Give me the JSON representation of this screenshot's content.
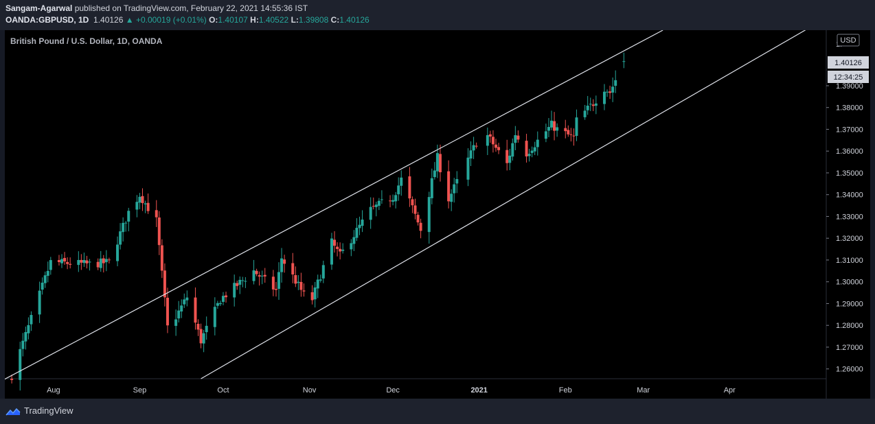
{
  "header": {
    "author": "Sangam-Agarwal",
    "published_text": "published on TradingView.com, February 22, 2021 14:55:36 IST",
    "symbol": "OANDA:GBPUSD, 1D",
    "last": "1.40126",
    "change": "+0.00019 (+0.01%)",
    "o_label": "O:",
    "o": "1.40107",
    "h_label": "H:",
    "h": "1.40522",
    "l_label": "L:",
    "l": "1.39808",
    "c_label": "C:",
    "c": "1.40126"
  },
  "chart": {
    "pair_title": "British Pound / U.S. Dollar, 1D, OANDA",
    "currency": "USD",
    "price_tag": "1.40126",
    "countdown": "12:34:25",
    "top_tick_partial": "1."
  },
  "footer": {
    "brand": "TradingView"
  },
  "colors": {
    "up": "#26a69a",
    "down": "#ef5350",
    "bg": "#000000",
    "panel": "#1e222d"
  },
  "chart_data": {
    "type": "candlestick",
    "title": "British Pound / U.S. Dollar, 1D, OANDA",
    "y_ticks": [
      "1.39000",
      "1.38000",
      "1.37000",
      "1.36000",
      "1.35000",
      "1.34000",
      "1.33000",
      "1.32000",
      "1.31000",
      "1.30000",
      "1.29000",
      "1.28000",
      "1.27000",
      "1.26000"
    ],
    "x_ticks": [
      "Aug",
      "Sep",
      "Oct",
      "Nov",
      "Dec",
      "2021",
      "Feb",
      "Mar",
      "Apr"
    ],
    "ylim": [
      1.2555,
      1.4155
    ],
    "keypoints": [
      {
        "date": "2020-07-17",
        "close": 1.257
      },
      {
        "date": "2020-07-31",
        "close": 1.309
      },
      {
        "date": "2020-08-14",
        "close": 1.308
      },
      {
        "date": "2020-08-21",
        "close": 1.309
      },
      {
        "date": "2020-08-28",
        "close": 1.332
      },
      {
        "date": "2020-09-01",
        "close": 1.34
      },
      {
        "date": "2020-09-07",
        "close": 1.328
      },
      {
        "date": "2020-09-11",
        "close": 1.279
      },
      {
        "date": "2020-09-14",
        "close": 1.284
      },
      {
        "date": "2020-09-18",
        "close": 1.293
      },
      {
        "date": "2020-09-23",
        "close": 1.273
      },
      {
        "date": "2020-09-30",
        "close": 1.292
      },
      {
        "date": "2020-10-12",
        "close": 1.305
      },
      {
        "date": "2020-10-20",
        "close": 1.296
      },
      {
        "date": "2020-10-22",
        "close": 1.311
      },
      {
        "date": "2020-10-30",
        "close": 1.294
      },
      {
        "date": "2020-11-02",
        "close": 1.292
      },
      {
        "date": "2020-11-09",
        "close": 1.318
      },
      {
        "date": "2020-11-12",
        "close": 1.312
      },
      {
        "date": "2020-11-23",
        "close": 1.333
      },
      {
        "date": "2020-12-01",
        "close": 1.339
      },
      {
        "date": "2020-12-04",
        "close": 1.347
      },
      {
        "date": "2020-12-11",
        "close": 1.324
      },
      {
        "date": "2020-12-17",
        "close": 1.357
      },
      {
        "date": "2020-12-21",
        "close": 1.338
      },
      {
        "date": "2020-12-31",
        "close": 1.364
      },
      {
        "date": "2021-01-04",
        "close": 1.367
      },
      {
        "date": "2021-01-11",
        "close": 1.354
      },
      {
        "date": "2021-01-14",
        "close": 1.368
      },
      {
        "date": "2021-01-18",
        "close": 1.359
      },
      {
        "date": "2021-01-27",
        "close": 1.372
      },
      {
        "date": "2021-01-29",
        "close": 1.37
      },
      {
        "date": "2021-02-04",
        "close": 1.366
      },
      {
        "date": "2021-02-05",
        "close": 1.374
      },
      {
        "date": "2021-02-11",
        "close": 1.382
      },
      {
        "date": "2021-02-15",
        "close": 1.389
      },
      {
        "date": "2021-02-17",
        "close": 1.387
      },
      {
        "date": "2021-02-22",
        "close": 1.40126
      }
    ],
    "last_candle": {
      "date": "2021-02-22",
      "open": 1.40107,
      "high": 1.40522,
      "low": 1.39808,
      "close": 1.40126
    },
    "channel_lines": [
      {
        "name": "upper",
        "p1": {
          "date": "2020-07-17",
          "price": 1.257
        },
        "p2": {
          "date": "2021-02-22",
          "price": 1.406
        }
      },
      {
        "name": "lower",
        "p1": {
          "date": "2020-09-23",
          "price": 1.2555
        },
        "p2": {
          "date": "2021-02-22",
          "price": 1.3675
        }
      }
    ]
  }
}
